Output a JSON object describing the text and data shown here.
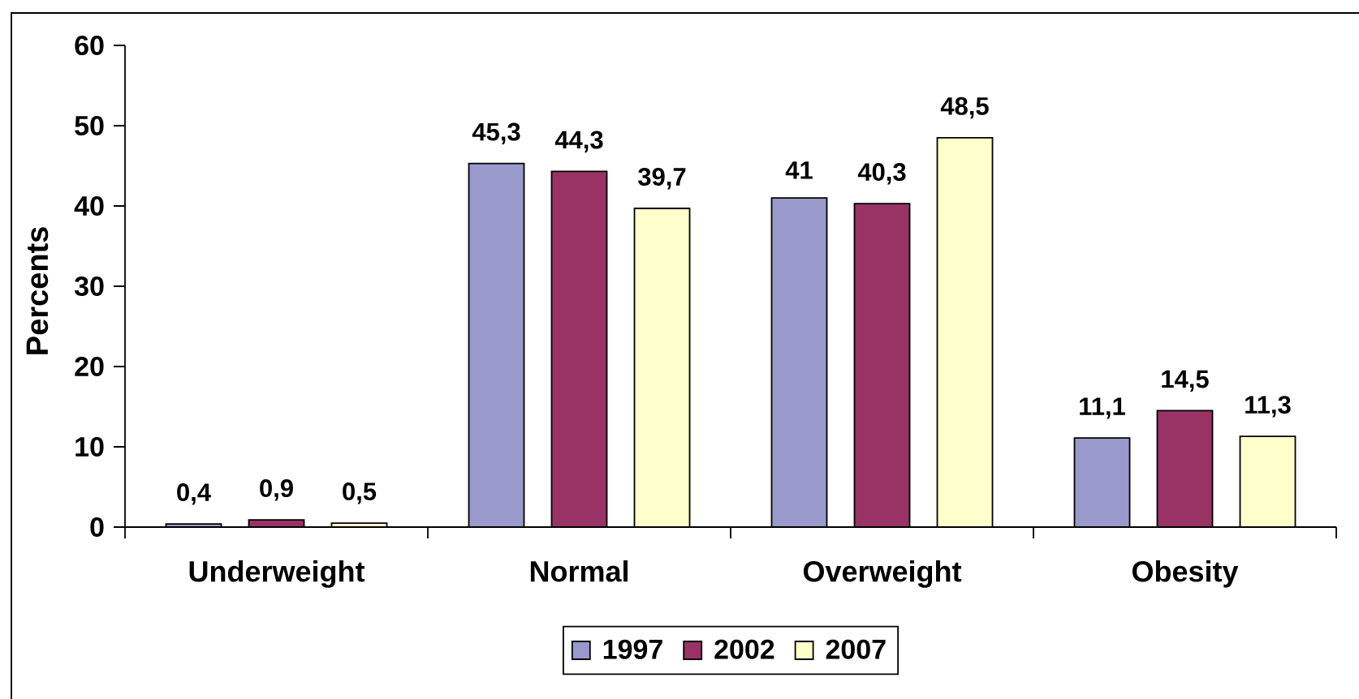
{
  "chart_data": {
    "type": "bar",
    "ylabel": "Percents",
    "categories": [
      "Underweight",
      "Normal",
      "Overweight",
      "Obesity"
    ],
    "series": [
      {
        "name": "1997",
        "color": "#9999cc",
        "values": [
          0.4,
          45.3,
          41,
          11.1
        ],
        "value_labels": [
          "0,4",
          "45,3",
          "41",
          "11,1"
        ]
      },
      {
        "name": "2002",
        "color": "#993366",
        "values": [
          0.9,
          44.3,
          40.3,
          14.5
        ],
        "value_labels": [
          "0,9",
          "44,3",
          "40,3",
          "14,5"
        ]
      },
      {
        "name": "2007",
        "color": "#ffffcc",
        "values": [
          0.5,
          39.7,
          48.5,
          11.3
        ],
        "value_labels": [
          "0,5",
          "39,7",
          "48,5",
          "11,3"
        ]
      }
    ],
    "ylim": [
      0,
      60
    ],
    "yticks": [
      0,
      10,
      20,
      30,
      40,
      50,
      60
    ],
    "legend": "bottom"
  }
}
